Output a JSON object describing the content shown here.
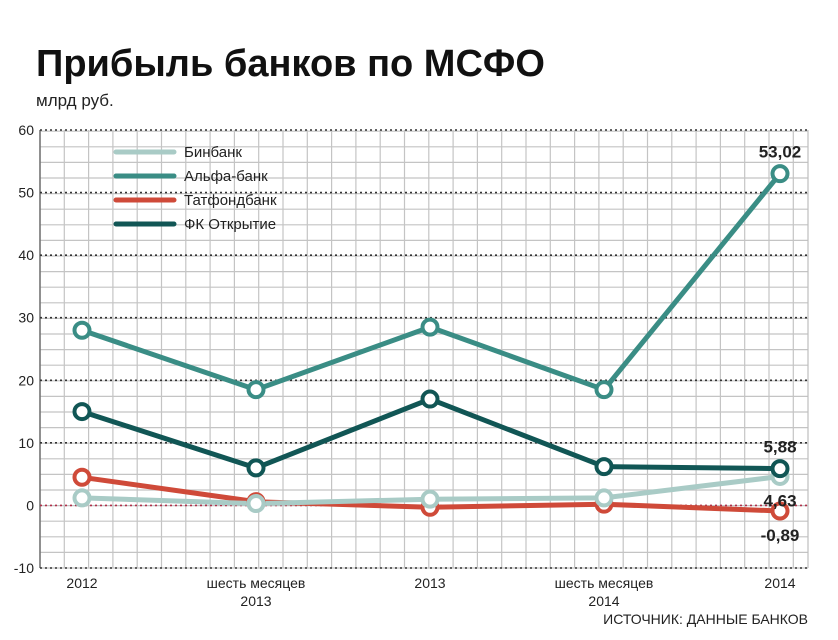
{
  "title": "Прибыль банков по МСФО",
  "unit_label": "млрд руб.",
  "source": "ИСТОЧНИК: ДАННЫЕ БАНКОВ",
  "chart_data": {
    "type": "line",
    "title": "Прибыль банков по МСФО",
    "ylabel": "млрд руб.",
    "xlabel": "",
    "ylim": [
      -10,
      60
    ],
    "yticks": [
      -10,
      0,
      10,
      20,
      30,
      40,
      50,
      60
    ],
    "categories": [
      [
        "2012"
      ],
      [
        "шесть месяцев",
        "2013"
      ],
      [
        "2013"
      ],
      [
        "шесть месяцев",
        "2014"
      ],
      [
        "2014"
      ]
    ],
    "grid": true,
    "legend_position": "top-left",
    "series": [
      {
        "name": "Бинбанк",
        "color": "#a9cbc6",
        "values": [
          1.2,
          0.3,
          1.0,
          1.2,
          4.63
        ]
      },
      {
        "name": "Альфа-банк",
        "color": "#3a8d85",
        "values": [
          28.0,
          18.5,
          28.5,
          18.5,
          53.02
        ]
      },
      {
        "name": "Татфондбанк",
        "color": "#cf4a39",
        "values": [
          4.5,
          0.6,
          -0.3,
          0.2,
          -0.89
        ]
      },
      {
        "name": "ФК Открытие",
        "color": "#115655",
        "values": [
          15.0,
          6.0,
          17.0,
          6.2,
          5.88
        ]
      }
    ],
    "data_labels": [
      {
        "text": "53,02",
        "series": 1,
        "point": 4,
        "pos": "above"
      },
      {
        "text": "5,88",
        "series": 3,
        "point": 4,
        "pos": "above"
      },
      {
        "text": "4,63",
        "series": 0,
        "point": 4,
        "pos": "below"
      },
      {
        "text": "-0,89",
        "series": 2,
        "point": 4,
        "pos": "below"
      }
    ]
  }
}
